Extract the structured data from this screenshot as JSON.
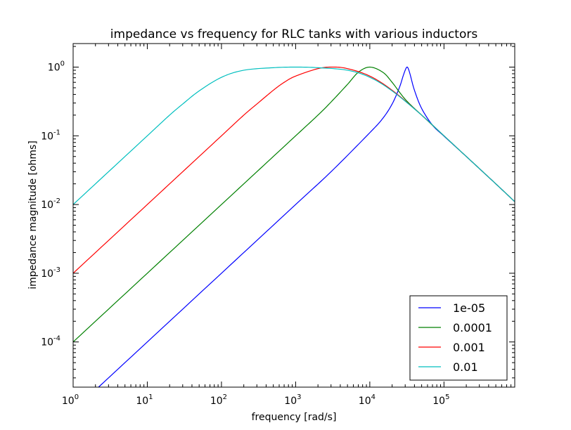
{
  "chart_data": {
    "type": "line",
    "title": "impedance vs frequency for RLC tanks with various inductors",
    "xlabel": "frequency [rad/s]",
    "ylabel": "impedance magnitude [ohms]",
    "x_scale": "log",
    "y_scale": "log",
    "xlim": [
      1,
      900000
    ],
    "ylim": [
      2.2e-05,
      2.2
    ],
    "grid": false,
    "legend_position": "lower-right",
    "x_ticks": [
      {
        "value": 1,
        "base": "10",
        "exp": "0"
      },
      {
        "value": 10,
        "base": "10",
        "exp": "1"
      },
      {
        "value": 100,
        "base": "10",
        "exp": "2"
      },
      {
        "value": 1000,
        "base": "10",
        "exp": "3"
      },
      {
        "value": 10000,
        "base": "10",
        "exp": "4"
      },
      {
        "value": 100000,
        "base": "10",
        "exp": "5"
      }
    ],
    "y_ticks": [
      {
        "value": 0.0001,
        "base": "10",
        "exp": "-4"
      },
      {
        "value": 0.001,
        "base": "10",
        "exp": "-3"
      },
      {
        "value": 0.01,
        "base": "10",
        "exp": "-2"
      },
      {
        "value": 0.1,
        "base": "10",
        "exp": "-1"
      },
      {
        "value": 1,
        "base": "10",
        "exp": "0"
      }
    ],
    "series": [
      {
        "name": "1e-05",
        "color": "#0000ff",
        "x": [
          2.2,
          10,
          100,
          1000,
          3000,
          10000,
          15000,
          20000,
          25000,
          28000,
          30000,
          31623,
          33000,
          35000,
          40000,
          50000,
          70000,
          100000,
          200000,
          500000,
          900000
        ],
        "y": [
          2.2e-05,
          0.0001,
          0.001,
          0.01,
          0.03,
          0.111,
          0.18,
          0.29,
          0.5,
          0.73,
          0.9,
          1.0,
          0.95,
          0.78,
          0.46,
          0.25,
          0.143,
          0.099,
          0.05,
          0.02,
          0.011
        ]
      },
      {
        "name": "0.0001",
        "color": "#008000",
        "x": [
          1,
          10,
          100,
          300,
          1000,
          2000,
          3000,
          5000,
          7000,
          10000,
          15000,
          20000,
          30000,
          50000,
          100000,
          200000,
          500000,
          900000
        ],
        "y": [
          0.0001,
          0.001,
          0.01,
          0.03,
          0.1,
          0.2,
          0.31,
          0.56,
          0.84,
          1.0,
          0.84,
          0.6,
          0.34,
          0.2,
          0.1,
          0.05,
          0.02,
          0.011
        ]
      },
      {
        "name": "0.001",
        "color": "#ff0000",
        "x": [
          1,
          10,
          30,
          100,
          200,
          300,
          500,
          700,
          1000,
          2000,
          3162,
          5000,
          10000,
          20000,
          50000,
          100000,
          200000,
          500000,
          900000
        ],
        "y": [
          0.001,
          0.01,
          0.03,
          0.1,
          0.2,
          0.29,
          0.46,
          0.6,
          0.74,
          0.95,
          1.0,
          0.95,
          0.74,
          0.46,
          0.2,
          0.1,
          0.05,
          0.02,
          0.011
        ]
      },
      {
        "name": "0.01",
        "color": "#00bfbf",
        "x": [
          1,
          3,
          10,
          20,
          30,
          50,
          100,
          200,
          500,
          1000,
          2000,
          5000,
          10000,
          20000,
          50000,
          100000,
          200000,
          500000,
          900000
        ],
        "y": [
          0.01,
          0.03,
          0.1,
          0.2,
          0.29,
          0.45,
          0.71,
          0.9,
          0.98,
          1.0,
          0.98,
          0.9,
          0.71,
          0.45,
          0.2,
          0.1,
          0.05,
          0.02,
          0.011
        ]
      }
    ]
  }
}
